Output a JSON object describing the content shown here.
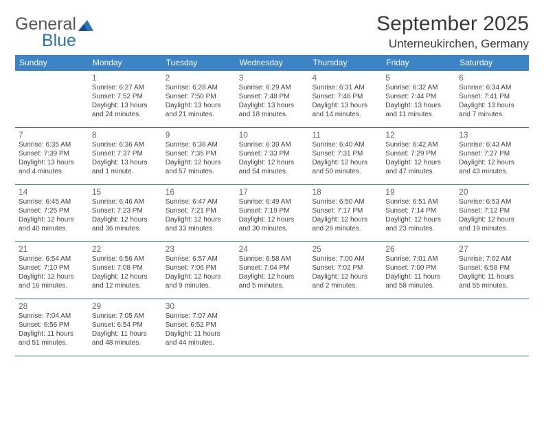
{
  "brand": {
    "word1": "General",
    "word2": "Blue"
  },
  "title": "September 2025",
  "location": "Unterneukirchen, Germany",
  "colors": {
    "header_bar": "#3d84c6",
    "rule": "#2f6aa3",
    "logo_blue": "#2c72b8",
    "text": "#3a3a3a",
    "daynum": "#686868"
  },
  "dow": [
    "Sunday",
    "Monday",
    "Tuesday",
    "Wednesday",
    "Thursday",
    "Friday",
    "Saturday"
  ],
  "weeks": [
    [
      null,
      {
        "d": "1",
        "rise": "6:27 AM",
        "set": "7:52 PM",
        "day": "13 hours and 24 minutes."
      },
      {
        "d": "2",
        "rise": "6:28 AM",
        "set": "7:50 PM",
        "day": "13 hours and 21 minutes."
      },
      {
        "d": "3",
        "rise": "6:29 AM",
        "set": "7:48 PM",
        "day": "13 hours and 18 minutes."
      },
      {
        "d": "4",
        "rise": "6:31 AM",
        "set": "7:46 PM",
        "day": "13 hours and 14 minutes."
      },
      {
        "d": "5",
        "rise": "6:32 AM",
        "set": "7:44 PM",
        "day": "13 hours and 11 minutes."
      },
      {
        "d": "6",
        "rise": "6:34 AM",
        "set": "7:41 PM",
        "day": "13 hours and 7 minutes."
      }
    ],
    [
      {
        "d": "7",
        "rise": "6:35 AM",
        "set": "7:39 PM",
        "day": "13 hours and 4 minutes."
      },
      {
        "d": "8",
        "rise": "6:36 AM",
        "set": "7:37 PM",
        "day": "13 hours and 1 minute."
      },
      {
        "d": "9",
        "rise": "6:38 AM",
        "set": "7:35 PM",
        "day": "12 hours and 57 minutes."
      },
      {
        "d": "10",
        "rise": "6:39 AM",
        "set": "7:33 PM",
        "day": "12 hours and 54 minutes."
      },
      {
        "d": "11",
        "rise": "6:40 AM",
        "set": "7:31 PM",
        "day": "12 hours and 50 minutes."
      },
      {
        "d": "12",
        "rise": "6:42 AM",
        "set": "7:29 PM",
        "day": "12 hours and 47 minutes."
      },
      {
        "d": "13",
        "rise": "6:43 AM",
        "set": "7:27 PM",
        "day": "12 hours and 43 minutes."
      }
    ],
    [
      {
        "d": "14",
        "rise": "6:45 AM",
        "set": "7:25 PM",
        "day": "12 hours and 40 minutes."
      },
      {
        "d": "15",
        "rise": "6:46 AM",
        "set": "7:23 PM",
        "day": "12 hours and 36 minutes."
      },
      {
        "d": "16",
        "rise": "6:47 AM",
        "set": "7:21 PM",
        "day": "12 hours and 33 minutes."
      },
      {
        "d": "17",
        "rise": "6:49 AM",
        "set": "7:19 PM",
        "day": "12 hours and 30 minutes."
      },
      {
        "d": "18",
        "rise": "6:50 AM",
        "set": "7:17 PM",
        "day": "12 hours and 26 minutes."
      },
      {
        "d": "19",
        "rise": "6:51 AM",
        "set": "7:14 PM",
        "day": "12 hours and 23 minutes."
      },
      {
        "d": "20",
        "rise": "6:53 AM",
        "set": "7:12 PM",
        "day": "12 hours and 19 minutes."
      }
    ],
    [
      {
        "d": "21",
        "rise": "6:54 AM",
        "set": "7:10 PM",
        "day": "12 hours and 16 minutes."
      },
      {
        "d": "22",
        "rise": "6:56 AM",
        "set": "7:08 PM",
        "day": "12 hours and 12 minutes."
      },
      {
        "d": "23",
        "rise": "6:57 AM",
        "set": "7:06 PM",
        "day": "12 hours and 9 minutes."
      },
      {
        "d": "24",
        "rise": "6:58 AM",
        "set": "7:04 PM",
        "day": "12 hours and 5 minutes."
      },
      {
        "d": "25",
        "rise": "7:00 AM",
        "set": "7:02 PM",
        "day": "12 hours and 2 minutes."
      },
      {
        "d": "26",
        "rise": "7:01 AM",
        "set": "7:00 PM",
        "day": "11 hours and 58 minutes."
      },
      {
        "d": "27",
        "rise": "7:02 AM",
        "set": "6:58 PM",
        "day": "11 hours and 55 minutes."
      }
    ],
    [
      {
        "d": "28",
        "rise": "7:04 AM",
        "set": "6:56 PM",
        "day": "11 hours and 51 minutes."
      },
      {
        "d": "29",
        "rise": "7:05 AM",
        "set": "6:54 PM",
        "day": "11 hours and 48 minutes."
      },
      {
        "d": "30",
        "rise": "7:07 AM",
        "set": "6:52 PM",
        "day": "11 hours and 44 minutes."
      },
      null,
      null,
      null,
      null
    ]
  ],
  "labels": {
    "sunrise": "Sunrise: ",
    "sunset": "Sunset: ",
    "daylight": "Daylight: "
  }
}
